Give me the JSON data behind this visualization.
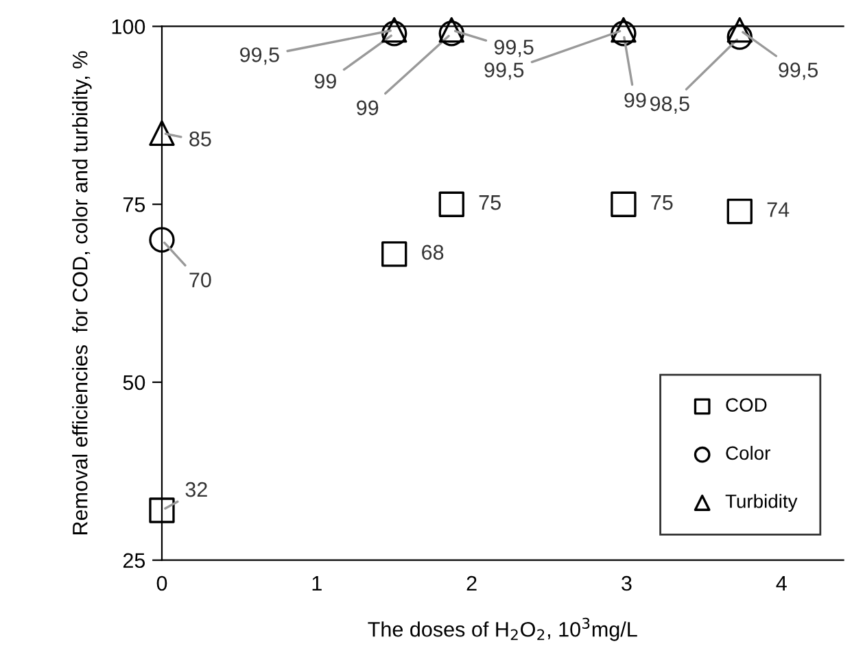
{
  "chart_data": {
    "type": "scatter",
    "xlabel": "The doses of H$_{2}$O$_{2}$, 10$^{3}$mg/L",
    "ylabel": "Removal efficiencies  for COD, color and turbidity, %",
    "x": [
      0,
      1.5,
      1.87,
      2.98,
      3.73
    ],
    "series": [
      {
        "name": "COD",
        "color": "#000000",
        "marker": "square",
        "values": [
          32,
          68,
          75,
          75,
          74
        ],
        "value_labels": [
          "32",
          "68",
          "75",
          "75",
          "74"
        ]
      },
      {
        "name": "Color",
        "color": "#000000",
        "marker": "circle",
        "values": [
          70,
          99,
          99,
          99,
          98.5
        ],
        "value_labels": [
          "70",
          "99",
          "99",
          "99",
          "98,5"
        ]
      },
      {
        "name": "Turbidity",
        "color": "#000000",
        "marker": "triangle",
        "values": [
          85,
          99.5,
          99.5,
          99.5,
          99.5
        ],
        "value_labels": [
          "85",
          "99,5",
          "99,5",
          "99,5",
          "99,5"
        ]
      }
    ],
    "xlim": [
      0,
      4.4
    ],
    "xticks": [
      0,
      1,
      2,
      3,
      4
    ],
    "ylim": [
      25,
      100
    ],
    "yticks": [
      25,
      50,
      75,
      100
    ],
    "grid": false,
    "legend": "bottom right"
  }
}
